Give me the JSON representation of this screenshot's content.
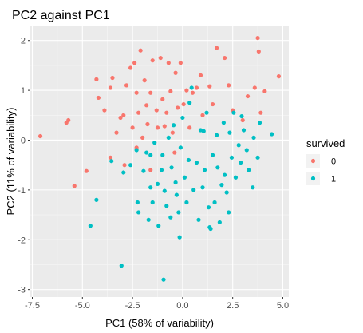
{
  "chart_data": {
    "type": "scatter",
    "title": "PC2 against PC1",
    "xlabel": "PC1 (58% of variability)",
    "ylabel": "PC2 (11% of variability)",
    "xlim": [
      -7.6,
      5.3
    ],
    "ylim": [
      -3.15,
      2.3
    ],
    "xticks": [
      -7.5,
      -5.0,
      -2.5,
      0.0,
      2.5,
      5.0
    ],
    "xtick_labels": [
      "-7.5",
      "-5.0",
      "-2.5",
      "0.0",
      "2.5",
      "5.0"
    ],
    "yticks": [
      -3,
      -2,
      -1,
      0,
      1,
      2
    ],
    "ytick_labels": [
      "-3",
      "-2",
      "-1",
      "0",
      "1",
      "2"
    ],
    "grid": true,
    "legend": {
      "title": "survived",
      "position": "right",
      "entries": [
        {
          "label": "0",
          "color": "#F8766D"
        },
        {
          "label": "1",
          "color": "#00BFC4"
        }
      ]
    },
    "series": [
      {
        "name": "0",
        "color": "#F8766D",
        "points": [
          [
            -7.1,
            0.08
          ],
          [
            -5.8,
            0.35
          ],
          [
            -5.7,
            0.4
          ],
          [
            -5.4,
            -0.92
          ],
          [
            -4.8,
            -0.62
          ],
          [
            -4.3,
            1.22
          ],
          [
            -4.2,
            0.85
          ],
          [
            -3.9,
            0.6
          ],
          [
            -3.6,
            1.05
          ],
          [
            -3.5,
            1.25
          ],
          [
            -3.3,
            0.15
          ],
          [
            -3.1,
            0.45
          ],
          [
            -2.95,
            0.5
          ],
          [
            -2.9,
            -0.5
          ],
          [
            -2.8,
            1.1
          ],
          [
            -2.6,
            1.45
          ],
          [
            -2.5,
            0.25
          ],
          [
            -2.4,
            1.55
          ],
          [
            -2.3,
            0.95
          ],
          [
            -2.2,
            0.55
          ],
          [
            -2.1,
            1.8
          ],
          [
            -2.0,
            0.05
          ],
          [
            -1.9,
            1.2
          ],
          [
            -1.8,
            0.7
          ],
          [
            -1.75,
            0.32
          ],
          [
            -1.6,
            0.95
          ],
          [
            -1.5,
            1.6
          ],
          [
            -1.3,
            0.6
          ],
          [
            -1.25,
            0.25
          ],
          [
            -1.1,
            1.65
          ],
          [
            -1.0,
            0.82
          ],
          [
            -0.9,
            0.28
          ],
          [
            -0.8,
            0.55
          ],
          [
            -0.7,
            1.55
          ],
          [
            -0.6,
            0.98
          ],
          [
            -0.5,
            0.15
          ],
          [
            -0.35,
            1.35
          ],
          [
            -0.25,
            0.65
          ],
          [
            -0.1,
            1.55
          ],
          [
            0.05,
            0.72
          ],
          [
            0.2,
            1.0
          ],
          [
            0.35,
            0.25
          ],
          [
            0.5,
            0.95
          ],
          [
            0.7,
            1.05
          ],
          [
            0.9,
            1.3
          ],
          [
            1.0,
            0.5
          ],
          [
            1.35,
            1.08
          ],
          [
            1.5,
            0.72
          ],
          [
            1.7,
            1.85
          ],
          [
            2.1,
            1.65
          ],
          [
            2.3,
            1.1
          ],
          [
            2.5,
            0.6
          ],
          [
            3.0,
            0.4
          ],
          [
            3.25,
            0.88
          ],
          [
            3.6,
            1.05
          ],
          [
            3.75,
            2.05
          ],
          [
            3.8,
            1.78
          ],
          [
            3.9,
            0.55
          ],
          [
            4.1,
            0.98
          ],
          [
            4.8,
            1.28
          ],
          [
            -0.4,
            -0.25
          ],
          [
            -2.3,
            -0.15
          ],
          [
            -3.6,
            -0.35
          ],
          [
            -1.6,
            -0.6
          ]
        ]
      },
      {
        "name": "1",
        "color": "#00BFC4",
        "points": [
          [
            -4.6,
            -1.72
          ],
          [
            -4.3,
            -1.2
          ],
          [
            -3.55,
            -0.42
          ],
          [
            -3.05,
            -2.52
          ],
          [
            -2.95,
            -0.65
          ],
          [
            -2.6,
            -0.5
          ],
          [
            -2.3,
            -0.2
          ],
          [
            -2.25,
            -1.25
          ],
          [
            -2.2,
            -1.45
          ],
          [
            -1.95,
            -0.62
          ],
          [
            -1.8,
            -0.25
          ],
          [
            -1.7,
            -1.6
          ],
          [
            -1.6,
            -0.95
          ],
          [
            -1.5,
            -1.25
          ],
          [
            -1.4,
            -0.05
          ],
          [
            -1.25,
            -0.88
          ],
          [
            -1.2,
            -1.72
          ],
          [
            -1.05,
            -0.6
          ],
          [
            -1.0,
            -0.3
          ],
          [
            -0.95,
            -2.8
          ],
          [
            -0.9,
            -1.02
          ],
          [
            -0.8,
            -1.32
          ],
          [
            -0.7,
            0.05
          ],
          [
            -0.6,
            -1.55
          ],
          [
            -0.55,
            -0.55
          ],
          [
            -0.45,
            0.3
          ],
          [
            -0.35,
            -0.85
          ],
          [
            -0.3,
            -1.1
          ],
          [
            -0.2,
            -1.45
          ],
          [
            -0.1,
            -0.15
          ],
          [
            0.0,
            0.45
          ],
          [
            0.1,
            -0.75
          ],
          [
            0.2,
            -1.25
          ],
          [
            0.3,
            -0.4
          ],
          [
            0.45,
            1.05
          ],
          [
            0.55,
            -1.0
          ],
          [
            0.7,
            -0.45
          ],
          [
            0.8,
            -1.6
          ],
          [
            0.9,
            0.2
          ],
          [
            1.0,
            -0.95
          ],
          [
            1.1,
            -0.6
          ],
          [
            1.2,
            0.55
          ],
          [
            1.3,
            -1.35
          ],
          [
            1.4,
            -1.78
          ],
          [
            1.5,
            -0.3
          ],
          [
            1.6,
            -1.25
          ],
          [
            1.7,
            0.1
          ],
          [
            1.75,
            -0.55
          ],
          [
            1.85,
            -1.65
          ],
          [
            1.95,
            -0.9
          ],
          [
            2.05,
            0.35
          ],
          [
            2.1,
            -0.7
          ],
          [
            2.2,
            -1.05
          ],
          [
            2.3,
            -1.45
          ],
          [
            2.35,
            0.15
          ],
          [
            2.45,
            -0.35
          ],
          [
            2.55,
            0.55
          ],
          [
            2.65,
            -0.75
          ],
          [
            2.8,
            -0.1
          ],
          [
            2.9,
            -0.45
          ],
          [
            3.05,
            0.2
          ],
          [
            3.2,
            -0.2
          ],
          [
            3.3,
            -0.6
          ],
          [
            3.5,
            -0.95
          ],
          [
            3.55,
            0.05
          ],
          [
            3.75,
            -0.35
          ],
          [
            3.85,
            0.35
          ],
          [
            4.45,
            0.12
          ],
          [
            0.35,
            0.75
          ],
          [
            1.35,
            -1.75
          ],
          [
            -0.15,
            -1.95
          ],
          [
            -1.6,
            -0.3
          ],
          [
            2.95,
            0.48
          ],
          [
            1.05,
            0.18
          ]
        ]
      }
    ]
  }
}
